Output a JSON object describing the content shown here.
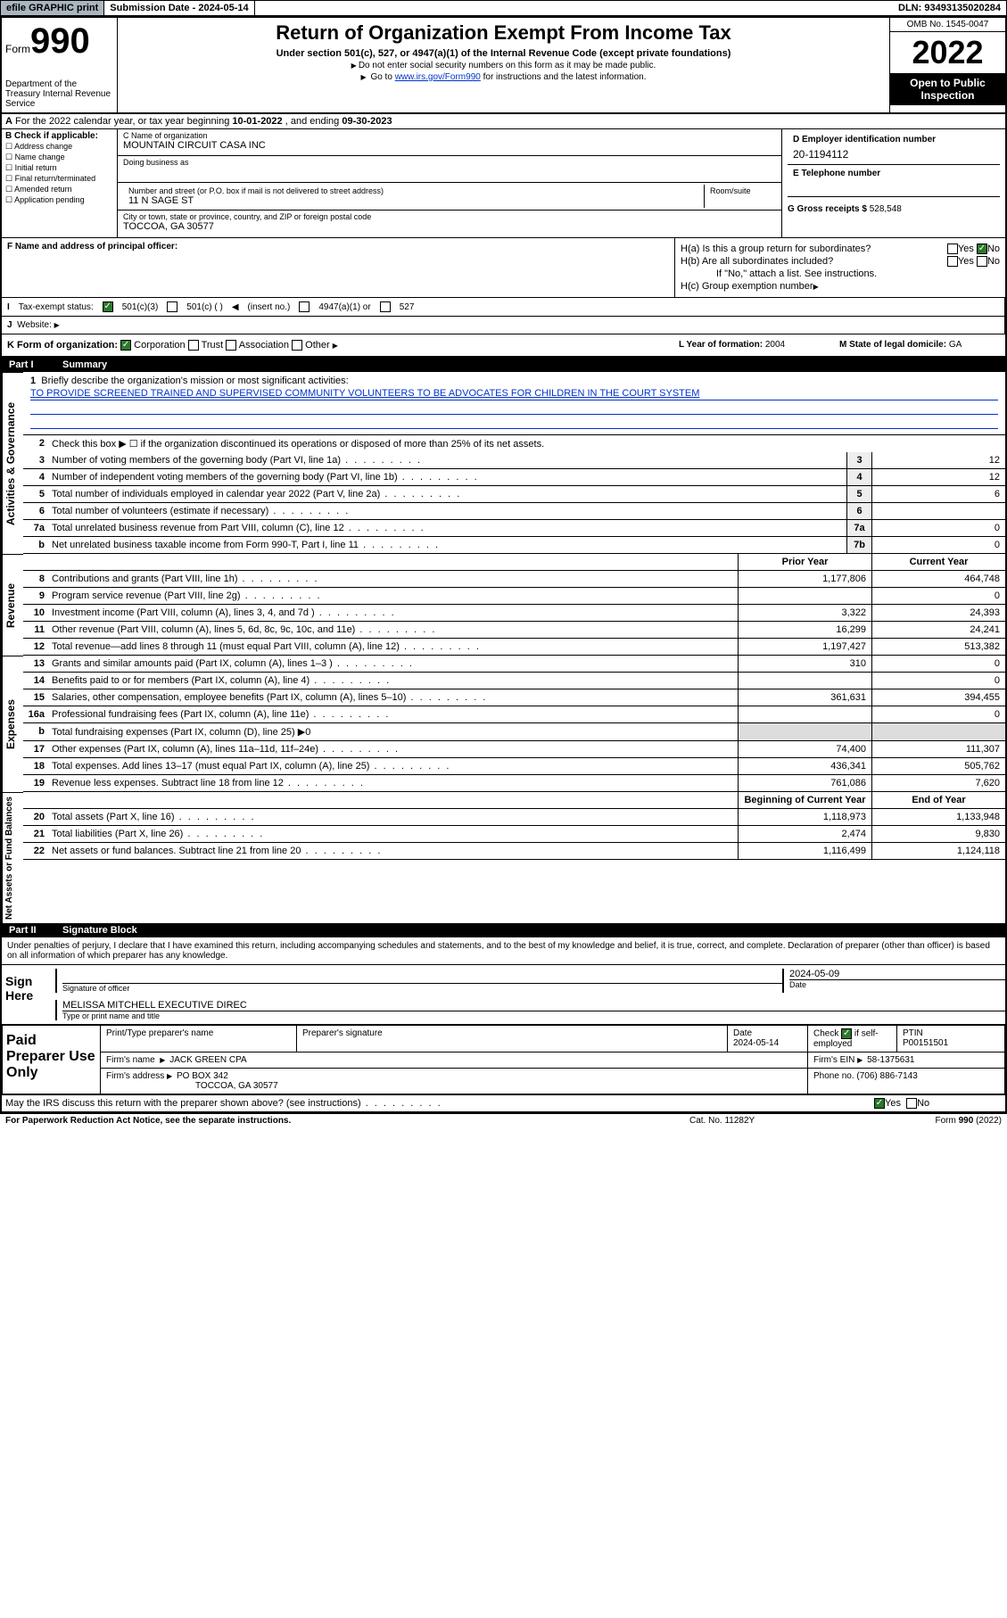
{
  "topbar": {
    "efile": "efile GRAPHIC print",
    "subdate_lbl": "Submission Date - ",
    "subdate": "2024-05-14",
    "dln": "DLN: 93493135020284"
  },
  "header": {
    "form_word": "Form",
    "form_num": "990",
    "dept": "Department of the Treasury Internal Revenue Service",
    "title": "Return of Organization Exempt From Income Tax",
    "sub1": "Under section 501(c), 527, or 4947(a)(1) of the Internal Revenue Code (except private foundations)",
    "sub2": "Do not enter social security numbers on this form as it may be made public.",
    "sub3_pre": "Go to ",
    "sub3_link": "www.irs.gov/Form990",
    "sub3_post": " for instructions and the latest information.",
    "omb": "OMB No. 1545-0047",
    "year": "2022",
    "insp": "Open to Public Inspection"
  },
  "rowA": {
    "label": "A",
    "text": "For the 2022 calendar year, or tax year beginning ",
    "begin": "10-01-2022",
    "mid": " , and ending ",
    "end": "09-30-2023"
  },
  "secB": {
    "hdr": "B Check if applicable:",
    "opts": [
      "Address change",
      "Name change",
      "Initial return",
      "Final return/terminated",
      "Amended return",
      "Application pending"
    ]
  },
  "secC": {
    "name_lbl": "C Name of organization",
    "name": "MOUNTAIN CIRCUIT CASA INC",
    "dba_lbl": "Doing business as",
    "addr_lbl": "Number and street (or P.O. box if mail is not delivered to street address)",
    "room_lbl": "Room/suite",
    "addr": "11 N SAGE ST",
    "city_lbl": "City or town, state or province, country, and ZIP or foreign postal code",
    "city": "TOCCOA, GA  30577"
  },
  "secD": {
    "lbl": "D Employer identification number",
    "val": "20-1194112"
  },
  "secE": {
    "lbl": "E Telephone number"
  },
  "secG": {
    "lbl": "G Gross receipts $ ",
    "val": "528,548"
  },
  "secF": {
    "lbl": "F  Name and address of principal officer:"
  },
  "secH": {
    "a": "H(a)  Is this a group return for subordinates?",
    "b": "H(b)  Are all subordinates included?",
    "b2": "If \"No,\" attach a list. See instructions.",
    "c": "H(c)  Group exemption number",
    "yes": "Yes",
    "no": "No"
  },
  "secI": {
    "lbl": "Tax-exempt status:",
    "o1": "501(c)(3)",
    "o2": "501(c) (  )",
    "o2b": "(insert no.)",
    "o3": "4947(a)(1) or",
    "o4": "527"
  },
  "secJ": {
    "lbl": "Website:"
  },
  "secK": {
    "lbl": "K Form of organization:",
    "o1": "Corporation",
    "o2": "Trust",
    "o3": "Association",
    "o4": "Other"
  },
  "secL": {
    "lbl": "L Year of formation: ",
    "val": "2004"
  },
  "secM": {
    "lbl": "M State of legal domicile: ",
    "val": "GA"
  },
  "part1": {
    "num": "Part I",
    "title": "Summary"
  },
  "governance": {
    "label": "Activities & Governance",
    "l1_lbl": "Briefly describe the organization's mission or most significant activities:",
    "l1_text": "TO PROVIDE SCREENED TRAINED AND SUPERVISED COMMUNITY VOLUNTEERS TO BE ADVOCATES FOR CHILDREN IN THE COURT SYSTEM",
    "l2": "Check this box ▶ ☐  if the organization discontinued its operations or disposed of more than 25% of its net assets.",
    "l3": "Number of voting members of the governing body (Part VI, line 1a)",
    "l4": "Number of independent voting members of the governing body (Part VI, line 1b)",
    "l5": "Total number of individuals employed in calendar year 2022 (Part V, line 2a)",
    "l6": "Total number of volunteers (estimate if necessary)",
    "l7a": "Total unrelated business revenue from Part VIII, column (C), line 12",
    "l7b": "Net unrelated business taxable income from Form 990-T, Part I, line 11",
    "v3": "12",
    "v4": "12",
    "v5": "6",
    "v6": "",
    "v7a": "0",
    "v7b": "0"
  },
  "cols": {
    "prior": "Prior Year",
    "current": "Current Year",
    "begin": "Beginning of Current Year",
    "end": "End of Year"
  },
  "revenue": {
    "label": "Revenue",
    "rows": [
      {
        "n": "8",
        "t": "Contributions and grants (Part VIII, line 1h)",
        "p": "1,177,806",
        "c": "464,748"
      },
      {
        "n": "9",
        "t": "Program service revenue (Part VIII, line 2g)",
        "p": "",
        "c": "0"
      },
      {
        "n": "10",
        "t": "Investment income (Part VIII, column (A), lines 3, 4, and 7d )",
        "p": "3,322",
        "c": "24,393"
      },
      {
        "n": "11",
        "t": "Other revenue (Part VIII, column (A), lines 5, 6d, 8c, 9c, 10c, and 11e)",
        "p": "16,299",
        "c": "24,241"
      },
      {
        "n": "12",
        "t": "Total revenue—add lines 8 through 11 (must equal Part VIII, column (A), line 12)",
        "p": "1,197,427",
        "c": "513,382"
      }
    ]
  },
  "expenses": {
    "label": "Expenses",
    "rows": [
      {
        "n": "13",
        "t": "Grants and similar amounts paid (Part IX, column (A), lines 1–3 )",
        "p": "310",
        "c": "0"
      },
      {
        "n": "14",
        "t": "Benefits paid to or for members (Part IX, column (A), line 4)",
        "p": "",
        "c": "0"
      },
      {
        "n": "15",
        "t": "Salaries, other compensation, employee benefits (Part IX, column (A), lines 5–10)",
        "p": "361,631",
        "c": "394,455"
      },
      {
        "n": "16a",
        "t": "Professional fundraising fees (Part IX, column (A), line 11e)",
        "p": "",
        "c": "0"
      },
      {
        "n": "b",
        "t": "Total fundraising expenses (Part IX, column (D), line 25) ▶0",
        "p": null,
        "c": null
      },
      {
        "n": "17",
        "t": "Other expenses (Part IX, column (A), lines 11a–11d, 11f–24e)",
        "p": "74,400",
        "c": "111,307"
      },
      {
        "n": "18",
        "t": "Total expenses. Add lines 13–17 (must equal Part IX, column (A), line 25)",
        "p": "436,341",
        "c": "505,762"
      },
      {
        "n": "19",
        "t": "Revenue less expenses. Subtract line 18 from line 12",
        "p": "761,086",
        "c": "7,620"
      }
    ]
  },
  "netassets": {
    "label": "Net Assets or Fund Balances",
    "rows": [
      {
        "n": "20",
        "t": "Total assets (Part X, line 16)",
        "p": "1,118,973",
        "c": "1,133,948"
      },
      {
        "n": "21",
        "t": "Total liabilities (Part X, line 26)",
        "p": "2,474",
        "c": "9,830"
      },
      {
        "n": "22",
        "t": "Net assets or fund balances. Subtract line 21 from line 20",
        "p": "1,116,499",
        "c": "1,124,118"
      }
    ]
  },
  "part2": {
    "num": "Part II",
    "title": "Signature Block"
  },
  "sig": {
    "decl": "Under penalties of perjury, I declare that I have examined this return, including accompanying schedules and statements, and to the best of my knowledge and belief, it is true, correct, and complete. Declaration of preparer (other than officer) is based on all information of which preparer has any knowledge.",
    "sign_here": "Sign Here",
    "sig_officer": "Signature of officer",
    "date": "Date",
    "date_val": "2024-05-09",
    "name": "MELISSA MITCHELL EXECUTIVE DIREC",
    "name_lbl": "Type or print name and title"
  },
  "paid": {
    "title": "Paid Preparer Use Only",
    "c1": "Print/Type preparer's name",
    "c2": "Preparer's signature",
    "c3": "Date",
    "c3v": "2024-05-14",
    "c4a": "Check",
    "c4b": "if self-employed",
    "c5": "PTIN",
    "c5v": "P00151501",
    "firm_lbl": "Firm's name",
    "firm": "JACK GREEN CPA",
    "ein_lbl": "Firm's EIN",
    "ein": "58-1375631",
    "addr_lbl": "Firm's address",
    "addr1": "PO BOX 342",
    "addr2": "TOCCOA, GA  30577",
    "phone_lbl": "Phone no.",
    "phone": "(706) 886-7143"
  },
  "discuss": {
    "q": "May the IRS discuss this return with the preparer shown above? (see instructions)",
    "yes": "Yes",
    "no": "No"
  },
  "footer": {
    "l": "For Paperwork Reduction Act Notice, see the separate instructions.",
    "m": "Cat. No. 11282Y",
    "r": "Form 990 (2022)"
  }
}
